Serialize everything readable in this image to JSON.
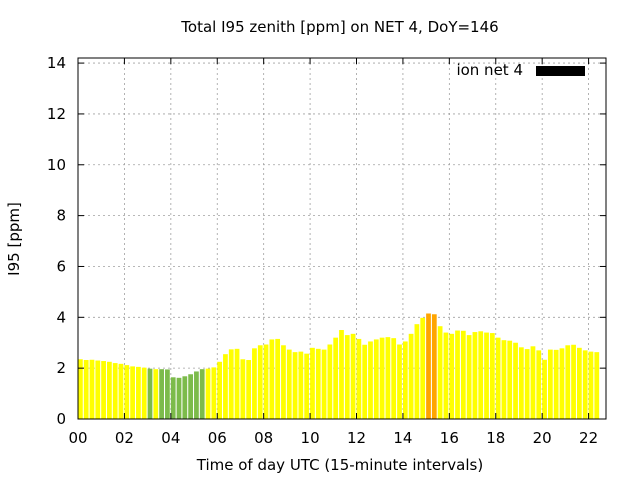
{
  "chart_data": {
    "type": "bar",
    "title": "Total I95 zenith [ppm] on NET 4, DoY=146",
    "xlabel": "Time of day UTC (15-minute intervals)",
    "ylabel": "I95 [ppm]",
    "ylim": [
      0,
      14.2
    ],
    "xlim": [
      0,
      22.75
    ],
    "yticks": [
      0,
      2,
      4,
      6,
      8,
      10,
      12,
      14
    ],
    "yticklabels": [
      "0",
      "2",
      "4",
      "6",
      "8",
      "10",
      "12",
      "14"
    ],
    "xticks": [
      0,
      2,
      4,
      6,
      8,
      10,
      12,
      14,
      16,
      18,
      20,
      22
    ],
    "xticklabels": [
      "00",
      "02",
      "04",
      "06",
      "08",
      "10",
      "12",
      "14",
      "16",
      "18",
      "20",
      "22"
    ],
    "grid": true,
    "legend": {
      "label": "ion net 4",
      "color": "#000000",
      "position": "top-right"
    },
    "colors": {
      "low": "#7cbb4b",
      "normal": "#ffff00",
      "elevated": "#ffa500"
    },
    "bar_interval_hours": 0.25,
    "series": [
      {
        "values": [
          2.35,
          2.32,
          2.33,
          2.3,
          2.28,
          2.25,
          2.2,
          2.17,
          2.12,
          2.07,
          2.05,
          2.02,
          1.98,
          1.96,
          1.96,
          1.95,
          1.64,
          1.62,
          1.68,
          1.76,
          1.87,
          1.96,
          1.98,
          2.03,
          2.25,
          2.55,
          2.74,
          2.76,
          2.35,
          2.32,
          2.78,
          2.9,
          2.93,
          3.13,
          3.15,
          2.9,
          2.73,
          2.63,
          2.65,
          2.57,
          2.8,
          2.76,
          2.73,
          2.93,
          3.2,
          3.5,
          3.3,
          3.35,
          3.15,
          2.92,
          3.05,
          3.13,
          3.2,
          3.22,
          3.18,
          2.93,
          3.05,
          3.35,
          3.73,
          3.98,
          4.15,
          4.12,
          3.65,
          3.4,
          3.35,
          3.48,
          3.47,
          3.3,
          3.42,
          3.45,
          3.4,
          3.38,
          3.2,
          3.1,
          3.08,
          3.0,
          2.82,
          2.75,
          2.86,
          2.7,
          2.33,
          2.73,
          2.72,
          2.78,
          2.9,
          2.92,
          2.8,
          2.7,
          2.65,
          2.63
        ],
        "color_levels": [
          "normal",
          "normal",
          "normal",
          "normal",
          "normal",
          "normal",
          "normal",
          "normal",
          "normal",
          "normal",
          "normal",
          "normal",
          "low",
          "normal",
          "low",
          "low",
          "low",
          "low",
          "low",
          "low",
          "low",
          "low",
          "normal",
          "normal",
          "normal",
          "normal",
          "normal",
          "normal",
          "normal",
          "normal",
          "normal",
          "normal",
          "normal",
          "normal",
          "normal",
          "normal",
          "normal",
          "normal",
          "normal",
          "normal",
          "normal",
          "normal",
          "normal",
          "normal",
          "normal",
          "normal",
          "normal",
          "normal",
          "normal",
          "normal",
          "normal",
          "normal",
          "normal",
          "normal",
          "normal",
          "normal",
          "normal",
          "normal",
          "normal",
          "normal",
          "elevated",
          "elevated",
          "normal",
          "normal",
          "normal",
          "normal",
          "normal",
          "normal",
          "normal",
          "normal",
          "normal",
          "normal",
          "normal",
          "normal",
          "normal",
          "normal",
          "normal",
          "normal",
          "normal",
          "normal",
          "normal",
          "normal",
          "normal",
          "normal",
          "normal",
          "normal",
          "normal",
          "normal",
          "normal",
          "normal"
        ]
      }
    ]
  }
}
